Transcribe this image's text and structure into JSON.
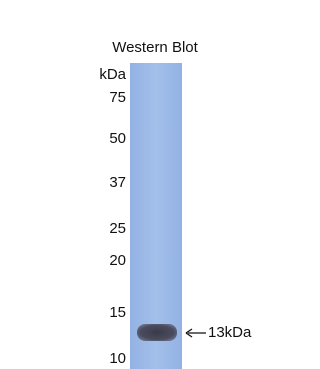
{
  "title": "Western Blot",
  "unit": "kDa",
  "markers": [
    "75",
    "50",
    "37",
    "25",
    "20",
    "15",
    "10"
  ],
  "band_label": "13kDa"
}
